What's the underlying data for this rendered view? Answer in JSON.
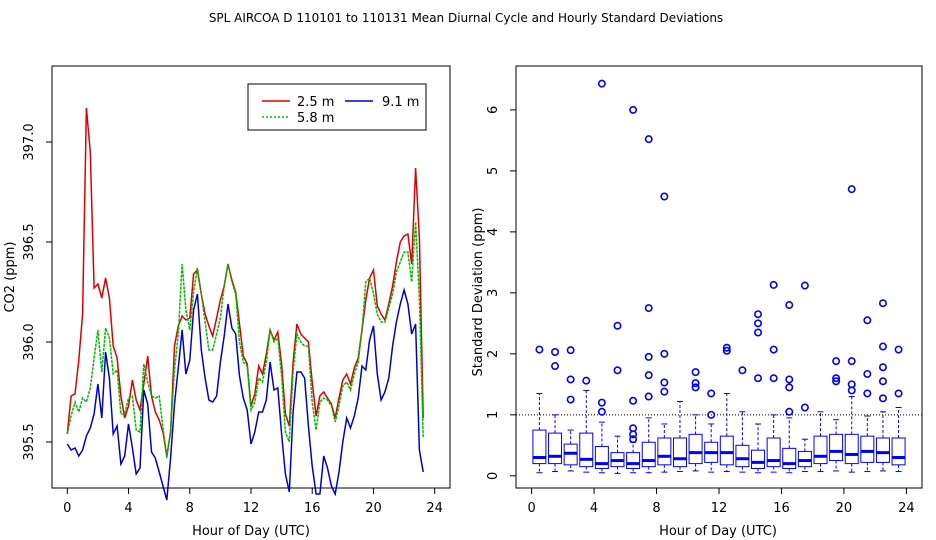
{
  "title": "SPL   AIRCOA D   110101 to 110131   Mean Diurnal Cycle and Hourly Standard Deviations",
  "colors": {
    "red": "#dd0000",
    "green": "#00bb00",
    "blue": "#0000cc",
    "box": "#0000ff",
    "frame": "#000000"
  },
  "chart_data": [
    {
      "type": "line",
      "title": "",
      "xlabel": "Hour of Day (UTC)",
      "ylabel": "CO2 (ppm)",
      "xlim": [
        -1,
        25
      ],
      "ylim": [
        395.27,
        397.38
      ],
      "xticks": [
        0,
        4,
        8,
        12,
        16,
        20,
        24
      ],
      "yticks": [
        395.5,
        396.0,
        396.5,
        397.0
      ],
      "ytick_labels": [
        "395.5",
        "396.0",
        "396.5",
        "397.0"
      ],
      "legend": {
        "position": "top-right",
        "entries": [
          {
            "label": "2.5 m",
            "series": 0
          },
          {
            "label": "9.1 m",
            "series": 2
          },
          {
            "label": "5.8 m",
            "series": 1
          }
        ]
      },
      "x_step": 0.25,
      "series": [
        {
          "name": "2.5 m",
          "color": "#dd0000",
          "values": [
            395.54,
            395.73,
            395.74,
            395.91,
            396.14,
            397.17,
            396.95,
            396.27,
            396.29,
            396.22,
            396.32,
            396.22,
            395.98,
            395.92,
            395.73,
            395.62,
            395.68,
            395.81,
            395.71,
            395.66,
            395.79,
            395.93,
            395.73,
            395.65,
            395.61,
            395.55,
            395.43,
            395.55,
            395.98,
            396.08,
            396.13,
            396.11,
            396.12,
            396.34,
            396.36,
            396.24,
            396.14,
            396.08,
            396.03,
            396.12,
            396.21,
            396.28,
            396.39,
            396.31,
            396.25,
            396.09,
            395.93,
            395.89,
            395.68,
            395.74,
            395.88,
            395.84,
            395.94,
            396.06,
            396.01,
            396.05,
            395.89,
            395.64,
            395.58,
            395.9,
            396.09,
            396.04,
            396.02,
            396.0,
            395.8,
            395.63,
            395.73,
            395.75,
            395.72,
            395.69,
            395.62,
            395.72,
            395.81,
            395.84,
            395.79,
            395.87,
            395.92,
            396.06,
            396.21,
            396.32,
            396.36,
            396.18,
            396.14,
            396.11,
            396.19,
            396.28,
            396.4,
            396.5,
            396.53,
            396.54,
            396.39,
            396.87,
            396.52,
            395.62
          ]
        },
        {
          "name": "5.8 m",
          "color": "#00bb00",
          "values": [
            395.54,
            395.63,
            395.7,
            395.65,
            395.72,
            395.7,
            395.77,
            395.92,
            396.06,
            395.85,
            396.07,
            396.02,
            395.84,
            395.86,
            395.64,
            395.64,
            395.72,
            395.73,
            395.56,
            395.55,
            395.89,
            395.8,
            395.73,
            395.72,
            395.73,
            395.57,
            395.42,
            395.56,
            395.86,
            396.04,
            396.39,
            396.16,
            396.06,
            396.25,
            396.37,
            396.24,
            396.1,
            395.96,
            395.96,
            396.04,
            396.12,
            396.28,
            396.39,
            396.3,
            396.24,
            396.0,
            395.9,
            395.88,
            395.66,
            395.7,
            395.82,
            395.8,
            395.9,
            396.06,
            396.0,
            396.02,
            395.83,
            395.55,
            395.5,
            395.85,
            396.04,
            396.0,
            395.98,
            395.98,
            395.7,
            395.56,
            395.7,
            395.72,
            395.71,
            395.68,
            395.6,
            395.68,
            395.78,
            395.8,
            395.76,
            395.84,
            395.9,
            396.06,
            396.3,
            396.32,
            396.24,
            396.14,
            396.1,
            396.1,
            396.17,
            396.24,
            396.35,
            396.4,
            396.45,
            396.45,
            396.3,
            396.6,
            396.22,
            395.52
          ]
        },
        {
          "name": "9.1 m",
          "color": "#0000cc",
          "values": [
            395.49,
            395.46,
            395.47,
            395.43,
            395.46,
            395.53,
            395.57,
            395.64,
            395.79,
            395.62,
            395.95,
            395.82,
            395.54,
            395.58,
            395.39,
            395.43,
            395.59,
            395.47,
            395.34,
            395.37,
            395.76,
            395.69,
            395.45,
            395.42,
            395.35,
            395.28,
            395.21,
            395.42,
            395.69,
            395.87,
            396.06,
            395.84,
            395.91,
            396.16,
            396.24,
            395.96,
            395.82,
            395.71,
            395.7,
            395.73,
            395.9,
            396.03,
            396.19,
            396.07,
            396.04,
            395.83,
            395.72,
            395.66,
            395.49,
            395.55,
            395.65,
            395.65,
            395.71,
            395.9,
            395.76,
            395.77,
            395.54,
            395.34,
            395.25,
            395.65,
            395.85,
            395.85,
            395.82,
            395.58,
            395.38,
            395.24,
            395.24,
            395.43,
            395.37,
            395.28,
            395.24,
            395.35,
            395.5,
            395.62,
            395.57,
            395.63,
            395.72,
            395.88,
            395.86,
            396.01,
            396.08,
            395.84,
            395.71,
            395.75,
            395.82,
            395.98,
            396.1,
            396.19,
            396.26,
            396.19,
            396.04,
            396.09,
            395.46,
            395.35
          ]
        }
      ]
    },
    {
      "type": "box",
      "title": "",
      "xlabel": "Hour of Day (UTC)",
      "ylabel": "Standard Deviation (ppm)",
      "xlim": [
        -1,
        25
      ],
      "ylim": [
        -0.2,
        6.72
      ],
      "xticks": [
        0,
        4,
        8,
        12,
        16,
        20,
        24
      ],
      "yticks": [
        0,
        1,
        2,
        3,
        4,
        5,
        6
      ],
      "reference_line": 1,
      "boxes": [
        {
          "x": 0.5,
          "min": 0.05,
          "q1": 0.2,
          "median": 0.3,
          "q3": 0.75,
          "max": 1.35,
          "outliers": [
            2.07
          ]
        },
        {
          "x": 1.5,
          "min": 0.07,
          "q1": 0.2,
          "median": 0.32,
          "q3": 0.7,
          "max": 1.0,
          "outliers": [
            1.8,
            2.03
          ]
        },
        {
          "x": 2.5,
          "min": 0.08,
          "q1": 0.18,
          "median": 0.37,
          "q3": 0.52,
          "max": 0.75,
          "outliers": [
            1.25,
            1.58,
            2.06
          ]
        },
        {
          "x": 3.5,
          "min": 0.06,
          "q1": 0.15,
          "median": 0.27,
          "q3": 0.7,
          "max": 1.4,
          "outliers": [
            1.56
          ]
        },
        {
          "x": 4.5,
          "min": 0.05,
          "q1": 0.12,
          "median": 0.2,
          "q3": 0.48,
          "max": 0.88,
          "outliers": [
            1.05,
            1.2,
            6.43
          ]
        },
        {
          "x": 5.5,
          "min": 0.04,
          "q1": 0.15,
          "median": 0.25,
          "q3": 0.38,
          "max": 0.65,
          "outliers": [
            1.73,
            2.46
          ]
        },
        {
          "x": 6.5,
          "min": 0.05,
          "q1": 0.12,
          "median": 0.2,
          "q3": 0.38,
          "max": 0.55,
          "outliers": [
            0.6,
            0.68,
            0.78,
            1.23,
            6.0
          ]
        },
        {
          "x": 7.5,
          "min": 0.05,
          "q1": 0.15,
          "median": 0.25,
          "q3": 0.55,
          "max": 0.95,
          "outliers": [
            1.3,
            1.65,
            1.95,
            2.75,
            5.52
          ]
        },
        {
          "x": 8.5,
          "min": 0.06,
          "q1": 0.18,
          "median": 0.32,
          "q3": 0.62,
          "max": 0.85,
          "outliers": [
            1.38,
            1.53,
            2.0,
            4.58
          ]
        },
        {
          "x": 9.5,
          "min": 0.07,
          "q1": 0.15,
          "median": 0.28,
          "q3": 0.62,
          "max": 1.22,
          "outliers": []
        },
        {
          "x": 10.5,
          "min": 0.08,
          "q1": 0.2,
          "median": 0.38,
          "q3": 0.68,
          "max": 1.0,
          "outliers": [
            1.45,
            1.52,
            1.7
          ]
        },
        {
          "x": 11.5,
          "min": 0.06,
          "q1": 0.22,
          "median": 0.38,
          "q3": 0.55,
          "max": 0.85,
          "outliers": [
            1.0,
            1.35
          ]
        },
        {
          "x": 12.5,
          "min": 0.07,
          "q1": 0.18,
          "median": 0.38,
          "q3": 0.65,
          "max": 1.35,
          "outliers": [
            2.05,
            2.1
          ]
        },
        {
          "x": 13.5,
          "min": 0.06,
          "q1": 0.15,
          "median": 0.28,
          "q3": 0.5,
          "max": 1.05,
          "outliers": [
            1.73
          ]
        },
        {
          "x": 14.5,
          "min": 0.05,
          "q1": 0.12,
          "median": 0.22,
          "q3": 0.42,
          "max": 0.85,
          "outliers": [
            1.6,
            2.35,
            2.5,
            2.65
          ]
        },
        {
          "x": 15.5,
          "min": 0.06,
          "q1": 0.15,
          "median": 0.25,
          "q3": 0.62,
          "max": 1.0,
          "outliers": [
            1.6,
            2.07,
            3.13
          ]
        },
        {
          "x": 16.5,
          "min": 0.05,
          "q1": 0.12,
          "median": 0.2,
          "q3": 0.45,
          "max": 0.95,
          "outliers": [
            1.05,
            1.45,
            1.58,
            2.8
          ]
        },
        {
          "x": 17.5,
          "min": 0.07,
          "q1": 0.15,
          "median": 0.25,
          "q3": 0.4,
          "max": 0.6,
          "outliers": [
            1.12,
            3.12
          ]
        },
        {
          "x": 18.5,
          "min": 0.07,
          "q1": 0.2,
          "median": 0.32,
          "q3": 0.65,
          "max": 1.05,
          "outliers": []
        },
        {
          "x": 19.5,
          "min": 0.08,
          "q1": 0.25,
          "median": 0.4,
          "q3": 0.68,
          "max": 0.92,
          "outliers": [
            1.55,
            1.6,
            1.88
          ]
        },
        {
          "x": 20.5,
          "min": 0.06,
          "q1": 0.2,
          "median": 0.35,
          "q3": 0.68,
          "max": 1.3,
          "outliers": [
            1.4,
            1.5,
            1.88,
            4.7
          ]
        },
        {
          "x": 21.5,
          "min": 0.07,
          "q1": 0.22,
          "median": 0.4,
          "q3": 0.65,
          "max": 0.98,
          "outliers": [
            1.35,
            1.67,
            2.55
          ]
        },
        {
          "x": 22.5,
          "min": 0.08,
          "q1": 0.22,
          "median": 0.38,
          "q3": 0.62,
          "max": 1.05,
          "outliers": [
            1.27,
            1.55,
            1.78,
            2.12,
            2.83
          ]
        },
        {
          "x": 23.5,
          "min": 0.07,
          "q1": 0.18,
          "median": 0.3,
          "q3": 0.62,
          "max": 1.12,
          "outliers": [
            1.35,
            2.07
          ]
        }
      ]
    }
  ]
}
